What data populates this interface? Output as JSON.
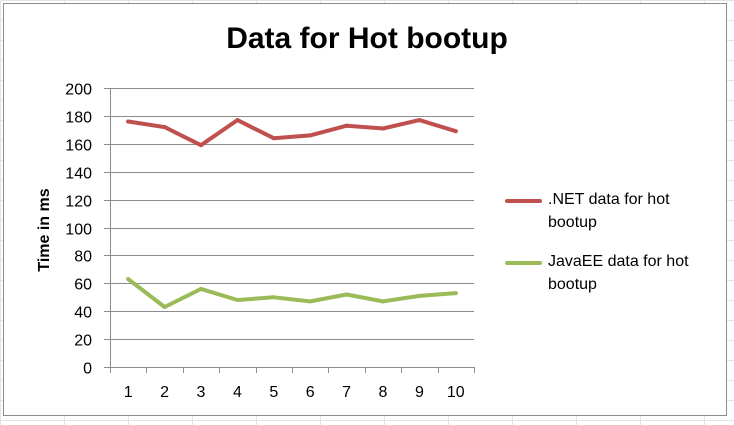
{
  "chart_data": {
    "type": "line",
    "title": "Data for Hot bootup",
    "xlabel": "",
    "ylabel": "Time in ms",
    "x": [
      1,
      2,
      3,
      4,
      5,
      6,
      7,
      8,
      9,
      10
    ],
    "ylim": [
      0,
      200
    ],
    "yticks": [
      0,
      20,
      40,
      60,
      80,
      100,
      120,
      140,
      160,
      180,
      200
    ],
    "grid": true,
    "legend_position": "right",
    "series": [
      {
        "name": ".NET data for hot bootup",
        "color": "#c0504d",
        "values": [
          176,
          172,
          159,
          177,
          164,
          166,
          173,
          171,
          177,
          169
        ]
      },
      {
        "name": "JavaEE data for hot bootup",
        "color": "#9bbb59",
        "values": [
          63,
          43,
          56,
          48,
          50,
          47,
          52,
          47,
          51,
          53
        ]
      }
    ]
  }
}
